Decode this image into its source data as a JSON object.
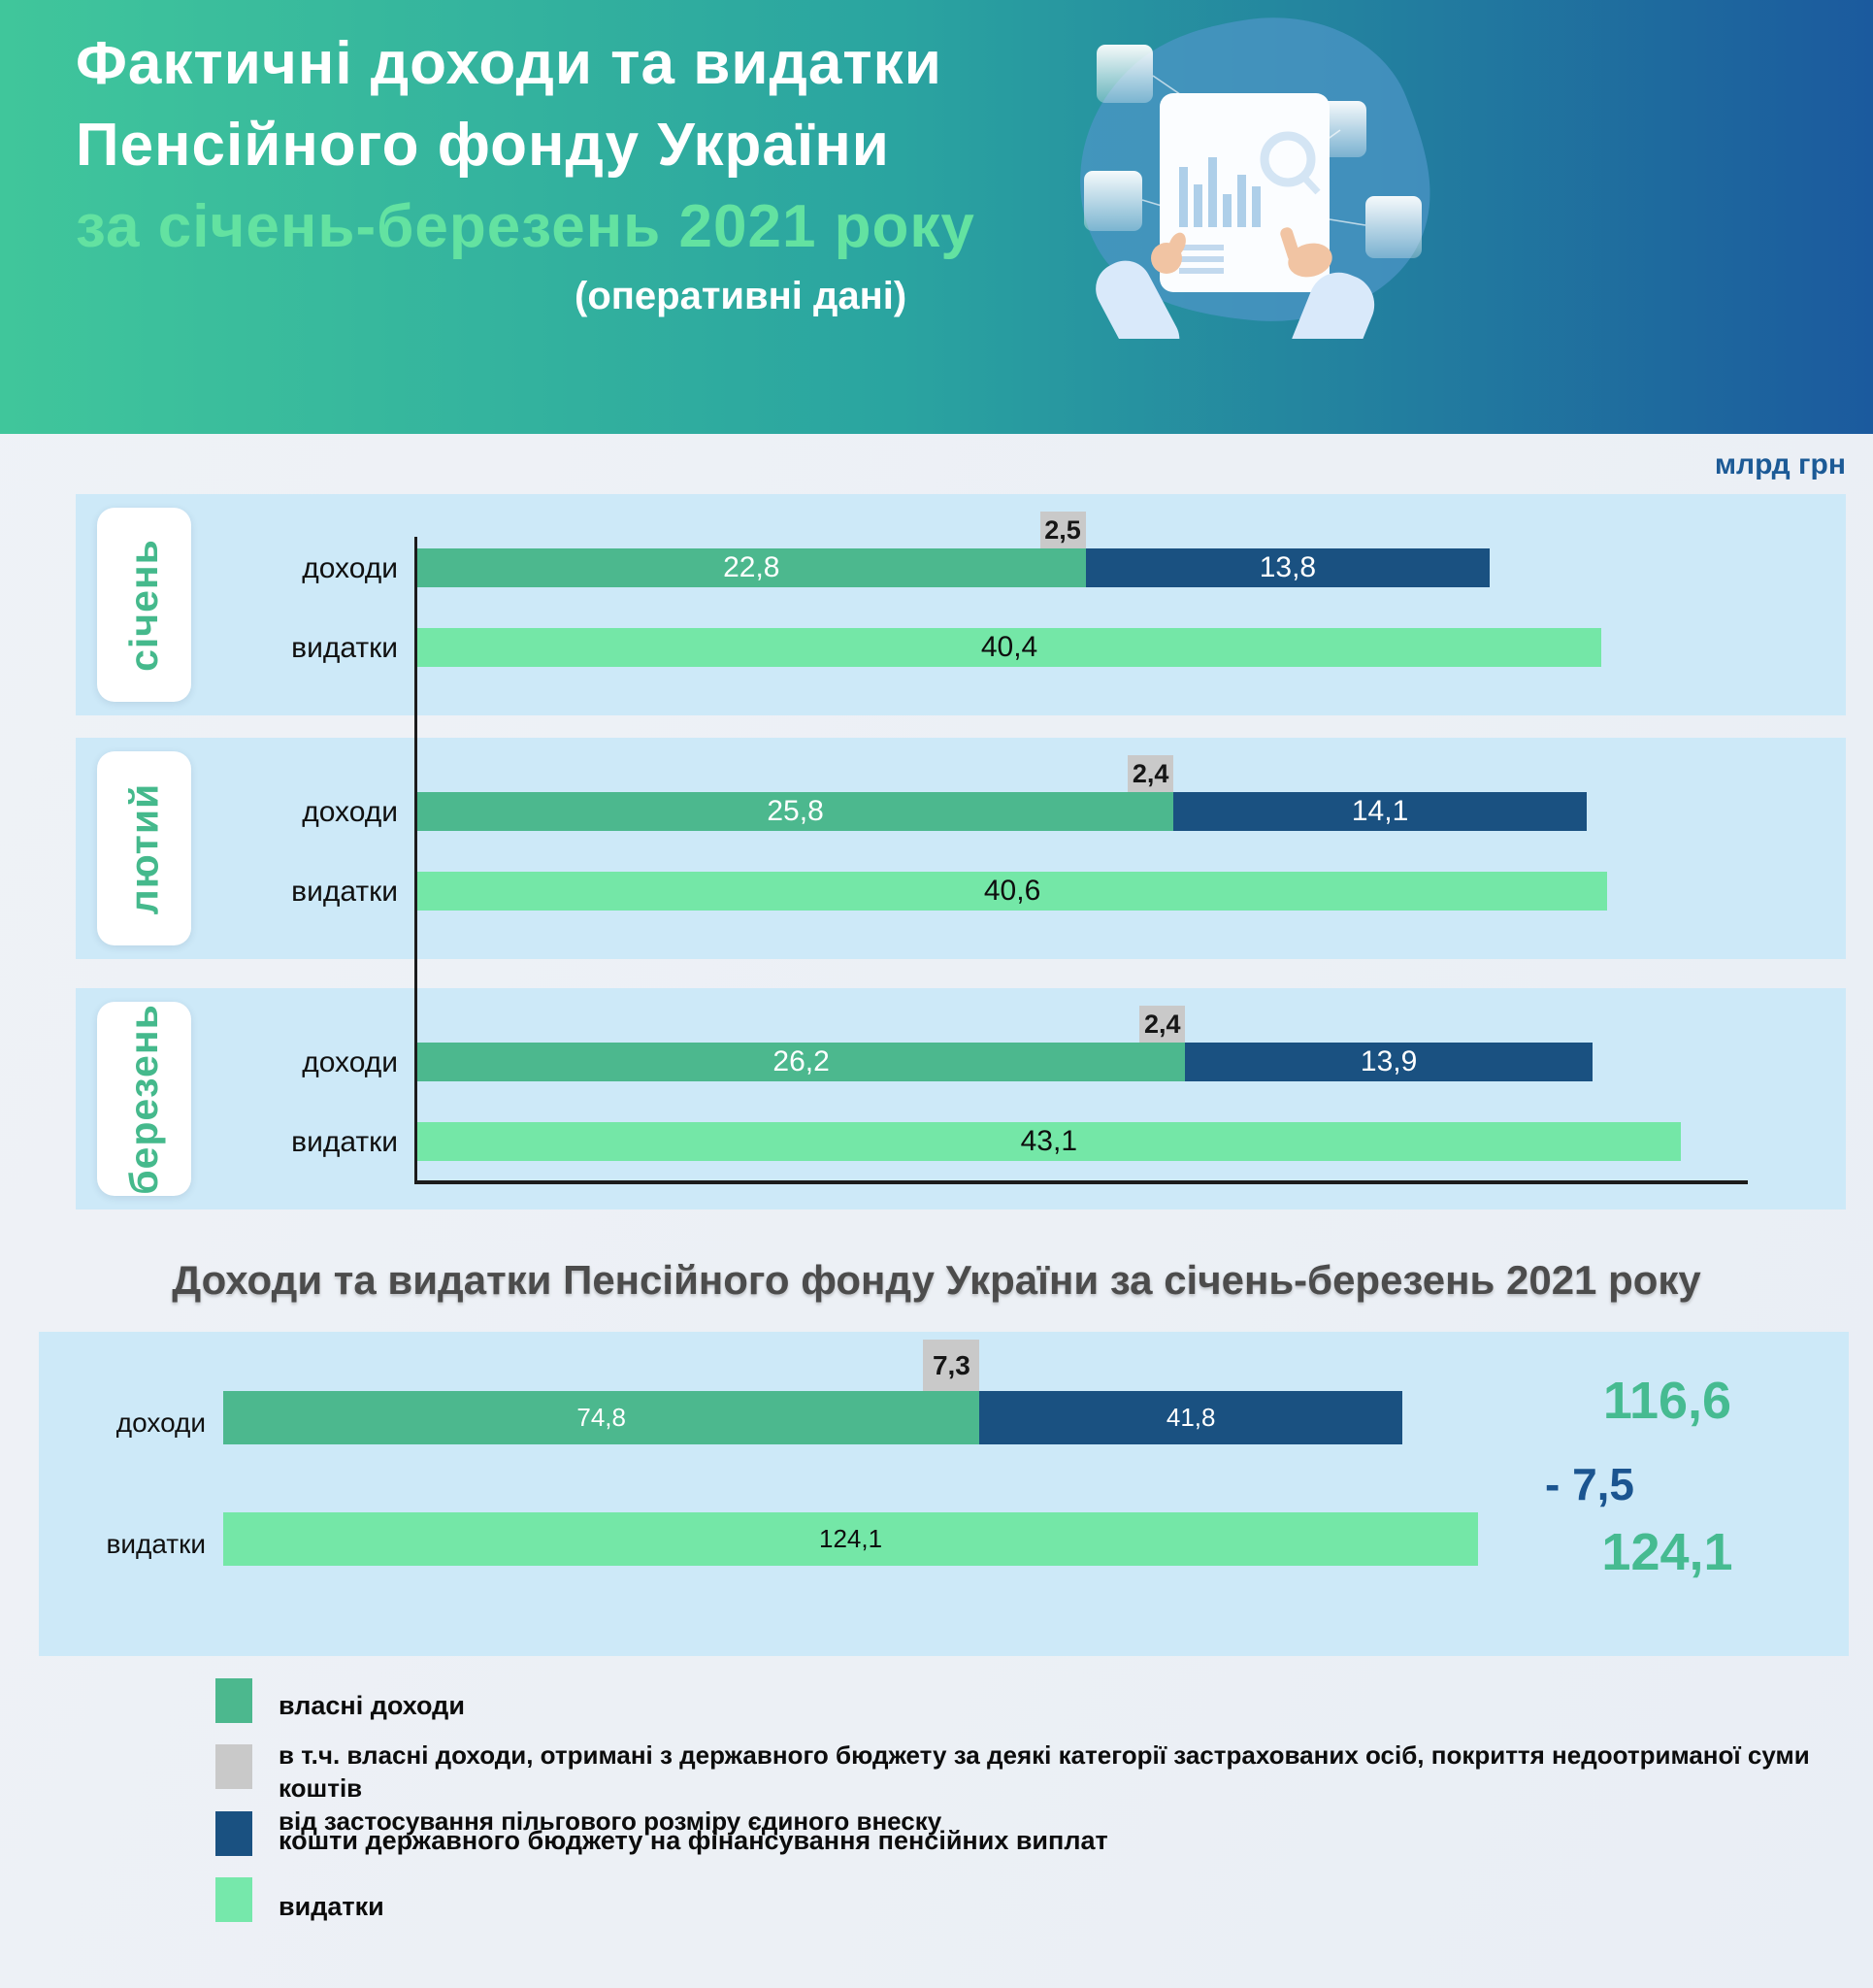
{
  "header": {
    "title_line1": "Фактичні доходи та видатки",
    "title_line2": "Пенсійного фонду України",
    "subtitle": "за січень-березень 2021 року",
    "note": "(оперативні дані)"
  },
  "unit_label": "млрд грн",
  "monthly": {
    "income_label": "доходи",
    "expense_label": "видатки",
    "months": [
      {
        "name": "січень",
        "income_own": "22,8",
        "income_tag": "2,5",
        "income_budget": "13,8",
        "expense": "40,4"
      },
      {
        "name": "лютий",
        "income_own": "25,8",
        "income_tag": "2,4",
        "income_budget": "14,1",
        "expense": "40,6"
      },
      {
        "name": "березень",
        "income_own": "26,2",
        "income_tag": "2,4",
        "income_budget": "13,9",
        "expense": "43,1"
      }
    ]
  },
  "summary": {
    "title": "Доходи та видатки Пенсійного фонду України за січень-березень 2021 року",
    "income_label": "доходи",
    "expense_label": "видатки",
    "income_own": "74,8",
    "income_tag": "7,3",
    "income_budget": "41,8",
    "expense_value": "124,1",
    "income_total": "116,6",
    "difference": "- 7,5",
    "expense_total": "124,1"
  },
  "legend": {
    "items": [
      "власні доходи",
      "в т.ч. власні доходи, отримані з державного бюджету за деякі категорії застрахованих осіб, покриття недоотриманої суми коштів\nвід застосування пільгового розміру єдиного внеску",
      "кошти державного бюджету на фінансування пенсійних виплат",
      "видатки"
    ]
  },
  "colors": {
    "own_income": "#4CB88E",
    "included_tag": "#C9C9C9",
    "state_budget": "#1A5181",
    "expense": "#74E7A7",
    "panel_background": "#CDE9F8",
    "header_gradient": [
      "#40C69B",
      "#2AA4A0",
      "#1B5A9E"
    ],
    "subtitle_green": "#63E2A1",
    "totals_green": "#46BB91",
    "navy_text": "#1B5590"
  },
  "chart_data": [
    {
      "type": "bar",
      "orientation": "horizontal",
      "title": "Фактичні доходи та видатки Пенсійного фонду України за січень-березень 2021 року (оперативні дані)",
      "unit": "млрд грн",
      "categories": [
        "січень",
        "лютий",
        "березень"
      ],
      "rows": [
        "доходи",
        "видатки"
      ],
      "series": [
        {
          "name": "власні доходи",
          "values": [
            22.8,
            25.8,
            26.2
          ]
        },
        {
          "name": "в т.ч. власні доходи, отримані з державного бюджету",
          "values": [
            2.5,
            2.4,
            2.4
          ]
        },
        {
          "name": "кошти державного бюджету на фінансування пенсійних виплат",
          "values": [
            13.8,
            14.1,
            13.9
          ]
        },
        {
          "name": "видатки",
          "values": [
            40.4,
            40.6,
            43.1
          ]
        }
      ],
      "xlim": [
        0,
        49.6
      ],
      "grid": false,
      "legend_position": "bottom"
    },
    {
      "type": "bar",
      "orientation": "horizontal",
      "title": "Доходи та видатки Пенсійного фонду України за січень-березень 2021 року",
      "unit": "млрд грн",
      "categories": [
        "доходи",
        "видатки"
      ],
      "series": [
        {
          "name": "власні доходи",
          "values": [
            74.8,
            null
          ]
        },
        {
          "name": "в т.ч. власні доходи, отримані з державного бюджету",
          "values": [
            7.3,
            null
          ]
        },
        {
          "name": "кошти державного бюджету на фінансування пенсійних виплат",
          "values": [
            41.8,
            null
          ]
        },
        {
          "name": "видатки",
          "values": [
            null,
            124.1
          ]
        }
      ],
      "totals": {
        "income": 116.6,
        "expense": 124.1,
        "difference": -7.5
      },
      "xlim": [
        0,
        160.9
      ],
      "grid": false
    }
  ]
}
